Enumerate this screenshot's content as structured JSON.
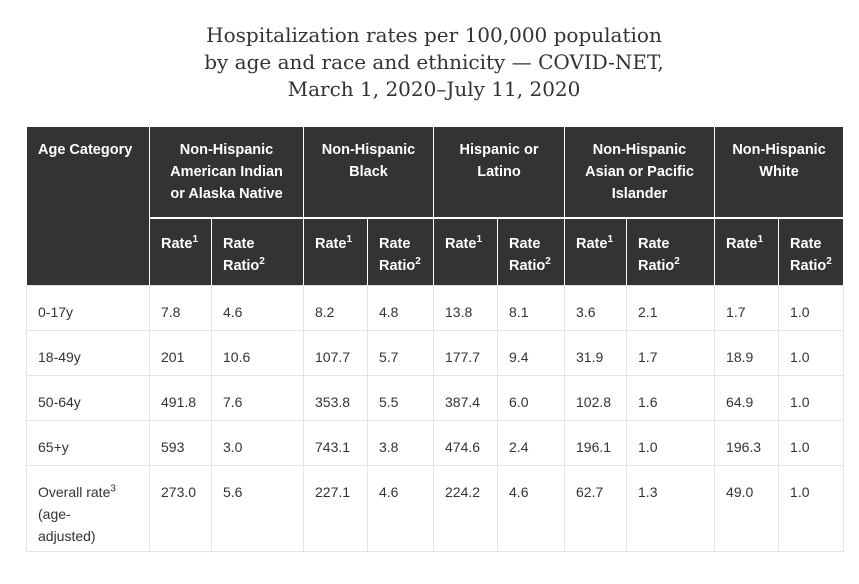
{
  "title": {
    "line1": "Hospitalization rates per 100,000 population",
    "line2": "by age and race and ethnicity — COVID-NET,",
    "line3": "March 1, 2020–July 11, 2020"
  },
  "table": {
    "age_header": "Age Category",
    "groups": [
      {
        "l1": "Non-Hispanic",
        "l2": "American Indian",
        "l3": "or Alaska Native"
      },
      {
        "l1": "Non-Hispanic",
        "l2": "Black",
        "l3": ""
      },
      {
        "l1": "Hispanic or",
        "l2": "Latino",
        "l3": ""
      },
      {
        "l1": "Non-Hispanic",
        "l2": "Asian or Pacific",
        "l3": "Islander"
      },
      {
        "l1": "Non-Hispanic",
        "l2": "White",
        "l3": ""
      }
    ],
    "sub": {
      "rate": "Rate",
      "rate_sup": "1",
      "ratio_l1": "Rate",
      "ratio_l2": "Ratio",
      "ratio_sup": "2"
    },
    "rows": [
      {
        "age": "0-17y",
        "v": [
          "7.8",
          "4.6",
          "8.2",
          "4.8",
          "13.8",
          "8.1",
          "3.6",
          "2.1",
          "1.7",
          "1.0"
        ]
      },
      {
        "age": "18-49y",
        "v": [
          "201",
          "10.6",
          "107.7",
          "5.7",
          "177.7",
          "9.4",
          "31.9",
          "1.7",
          "18.9",
          "1.0"
        ]
      },
      {
        "age": "50-64y",
        "v": [
          "491.8",
          "7.6",
          "353.8",
          "5.5",
          "387.4",
          "6.0",
          "102.8",
          "1.6",
          "64.9",
          "1.0"
        ]
      },
      {
        "age": "65+y",
        "v": [
          "593",
          "3.0",
          "743.1",
          "3.8",
          "474.6",
          "2.4",
          "196.1",
          "1.0",
          "196.3",
          "1.0"
        ]
      }
    ],
    "last_row": {
      "age_l1": "Overall rate",
      "age_sup": "3",
      "age_l2": "(age-",
      "age_l3": "adjusted)",
      "v": [
        "273.0",
        "5.6",
        "227.1",
        "4.6",
        "224.2",
        "4.6",
        "62.7",
        "1.3",
        "49.0",
        "1.0"
      ]
    }
  }
}
